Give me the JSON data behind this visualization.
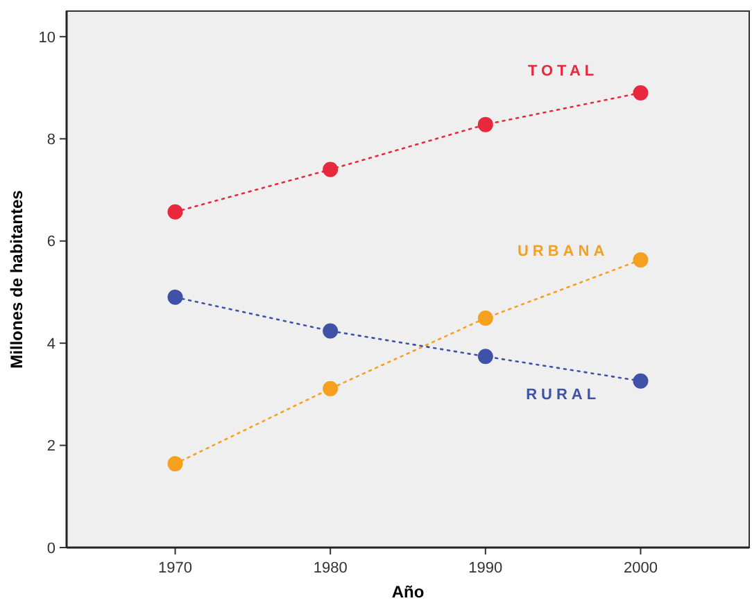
{
  "chart_data": {
    "type": "line",
    "xlabel": "Año",
    "ylabel": "Millones de habitantes",
    "x": [
      1970,
      1980,
      1990,
      2000
    ],
    "series": [
      {
        "name": "TOTAL",
        "color": "#e8283c",
        "values": [
          6.57,
          7.4,
          8.28,
          8.9
        ]
      },
      {
        "name": "URBANA",
        "color": "#f5a01e",
        "values": [
          1.64,
          3.11,
          4.49,
          5.63
        ]
      },
      {
        "name": "RURAL",
        "color": "#3f52a8",
        "values": [
          4.9,
          4.24,
          3.74,
          3.26
        ]
      }
    ],
    "xlim": [
      1963,
      2007
    ],
    "xticks": [
      1970,
      1980,
      1990,
      2000
    ],
    "ylim": [
      0,
      10.5
    ],
    "yticks": [
      0,
      2,
      4,
      6,
      8,
      10
    ],
    "grid": false,
    "marker": "circle",
    "line_style": "dotted"
  }
}
